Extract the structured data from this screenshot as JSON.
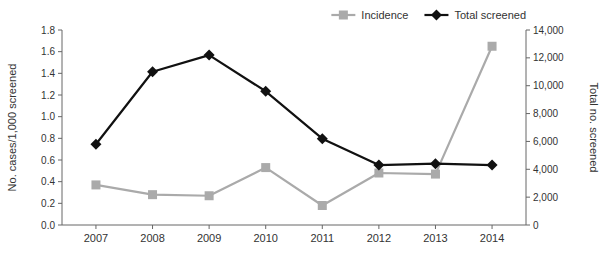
{
  "chart_data": {
    "type": "line",
    "x": [
      2007,
      2008,
      2009,
      2010,
      2011,
      2012,
      2013,
      2014
    ],
    "xlim": [
      2006.4,
      2014.6
    ],
    "xticks": [
      2007,
      2008,
      2009,
      2010,
      2011,
      2012,
      2013,
      2014
    ],
    "ylabel": "No. cases/1,000 screened",
    "y2label": "Total no. screened",
    "ylim": [
      0,
      1.8
    ],
    "yticks": [
      {
        "value": 0,
        "label": "0.0"
      },
      0.2,
      0.4,
      0.6,
      0.8,
      {
        "value": 1,
        "label": "1.0"
      },
      1.2,
      1.4,
      1.6,
      1.8
    ],
    "y2lim": [
      0,
      14000
    ],
    "y2ticks": [
      0,
      {
        "value": 2000,
        "label": "2,000"
      },
      {
        "value": 4000,
        "label": "4,000"
      },
      {
        "value": 6000,
        "label": "6,000"
      },
      {
        "value": 8000,
        "label": "8,000"
      },
      {
        "value": 10000,
        "label": "10,000"
      },
      {
        "value": 12000,
        "label": "12,000"
      },
      {
        "value": 14000,
        "label": "14,000"
      }
    ],
    "series": [
      {
        "name": "Incidence",
        "color": "#aaaaaa",
        "marker": "square",
        "values": [
          0.37,
          0.28,
          0.27,
          0.53,
          0.18,
          0.48,
          0.47,
          1.65
        ]
      },
      {
        "name": "Total screened",
        "color": "#111111",
        "marker": "diamond",
        "axis": "y2",
        "values": [
          5800,
          11000,
          12200,
          9600,
          6200,
          4300,
          4400,
          4300
        ]
      }
    ],
    "legend": "upper right",
    "grid": false
  }
}
